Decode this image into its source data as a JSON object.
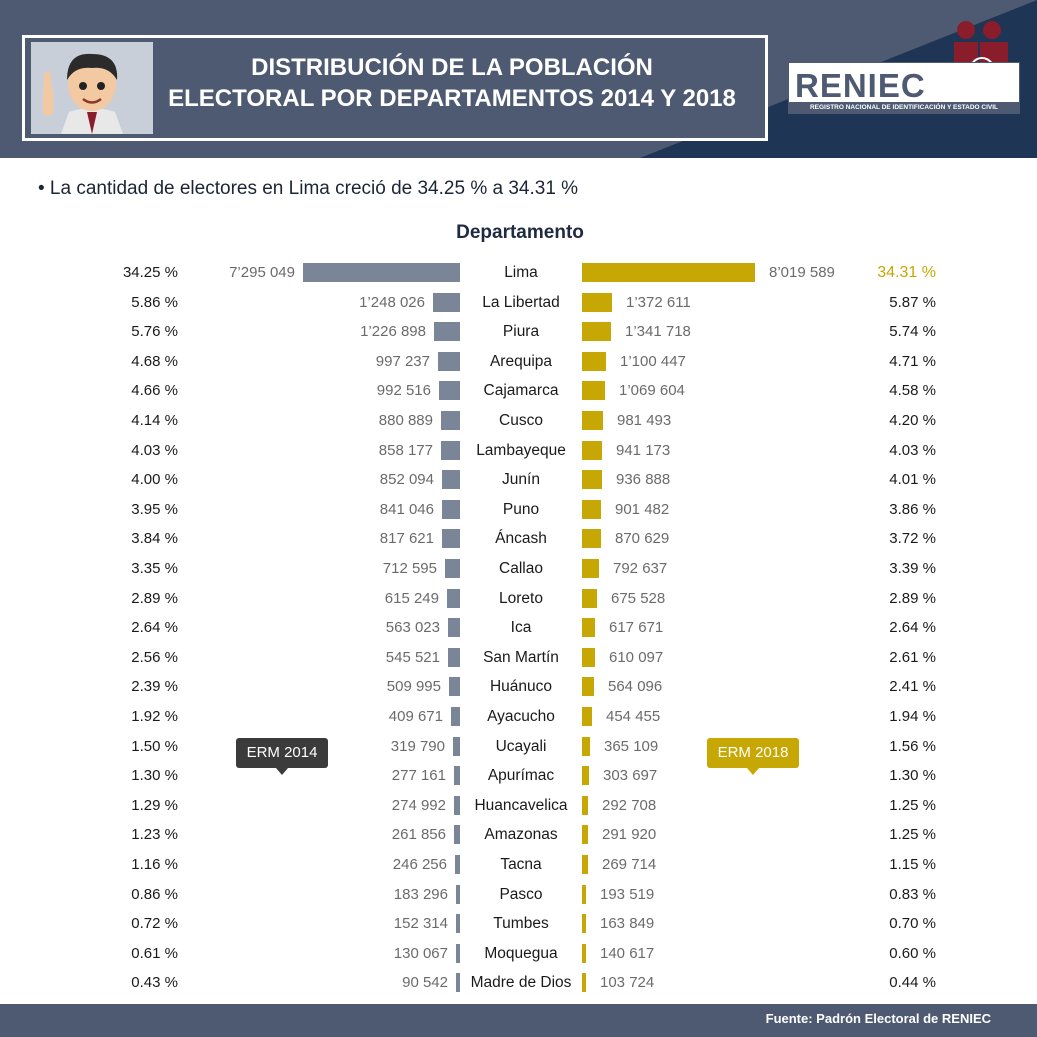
{
  "header": {
    "title_line1": "DISTRIBUCIÓN DE LA POBLACIÓN",
    "title_line2": "ELECTORAL POR DEPARTAMENTOS 2014 Y 2018"
  },
  "logo": {
    "name": "RENIEC",
    "subtitle": "REGISTRO NACIONAL DE IDENTIFICACIÓN Y ESTADO CIVIL"
  },
  "headline": "• La cantidad de electores en Lima creció de 34.25 % a 34.31 %",
  "footer": {
    "source": "Fuente: Padrón Electoral de RENIEC"
  },
  "colors": {
    "bar_2014": "#7a8598",
    "bar_2018": "#c6a703",
    "header": "#4e5a72"
  },
  "chart_data": {
    "type": "bar",
    "title": "Departamento",
    "series": [
      {
        "name": "ERM 2014",
        "values": [
          7295049,
          1248026,
          1226898,
          997237,
          992516,
          880889,
          858177,
          852094,
          841046,
          817621,
          712595,
          615249,
          563023,
          545521,
          509995,
          409671,
          319790,
          277161,
          274992,
          261856,
          246256,
          183296,
          152314,
          130067,
          90542
        ],
        "labels": [
          "7’295 049",
          "1’248 026",
          "1’226 898",
          "997 237",
          "992 516",
          "880 889",
          "858 177",
          "852 094",
          "841 046",
          "817 621",
          "712 595",
          "615 249",
          "563 023",
          "545 521",
          "509 995",
          "409 671",
          "319 790",
          "277 161",
          "274 992",
          "261 856",
          "246 256",
          "183 296",
          "152 314",
          "130 067",
          "90 542"
        ],
        "percent": [
          "34.25 %",
          "5.86 %",
          "5.76 %",
          "4.68 %",
          "4.66 %",
          "4.14 %",
          "4.03 %",
          "4.00 %",
          "3.95 %",
          "3.84 %",
          "3.35 %",
          "2.89 %",
          "2.64 %",
          "2.56 %",
          "2.39 %",
          "1.92 %",
          "1.50 %",
          "1.30 %",
          "1.29 %",
          "1.23 %",
          "1.16 %",
          "0.86 %",
          "0.72 %",
          "0.61 %",
          "0.43 %"
        ]
      },
      {
        "name": "ERM 2018",
        "values": [
          8019589,
          1372611,
          1341718,
          1100447,
          1069604,
          981493,
          941173,
          936888,
          901482,
          870629,
          792637,
          675528,
          617671,
          610097,
          564096,
          454455,
          365109,
          303697,
          292708,
          291920,
          269714,
          193519,
          163849,
          140617,
          103724
        ],
        "labels": [
          "8’019 589",
          "1’372 611",
          "1’341 718",
          "1’100 447",
          "1’069 604",
          "981 493",
          "941 173",
          "936 888",
          "901 482",
          "870 629",
          "792 637",
          "675 528",
          "617 671",
          "610 097",
          "564 096",
          "454 455",
          "365 109",
          "303 697",
          "292 708",
          "291 920",
          "269 714",
          "193 519",
          "163 849",
          "140 617",
          "103 724"
        ],
        "percent": [
          "34.31 %",
          "5.87 %",
          "5.74 %",
          "4.71 %",
          "4.58 %",
          "4.20 %",
          "4.03 %",
          "4.01 %",
          "3.86 %",
          "3.72 %",
          "3.39 %",
          "2.89 %",
          "2.64 %",
          "2.61 %",
          "2.41 %",
          "1.94 %",
          "1.56 %",
          "1.30 %",
          "1.25 %",
          "1.25 %",
          "1.15 %",
          "0.83 %",
          "0.70 %",
          "0.60 %",
          "0.44 %"
        ]
      }
    ],
    "categories": [
      "Lima",
      "La Libertad",
      "Piura",
      "Arequipa",
      "Cajamarca",
      "Cusco",
      "Lambayeque",
      "Junín",
      "Puno",
      "Áncash",
      "Callao",
      "Loreto",
      "Ica",
      "San Martín",
      "Huánuco",
      "Ayacucho",
      "Ucayali",
      "Apurímac",
      "Huancavelica",
      "Amazonas",
      "Tacna",
      "Pasco",
      "Tumbes",
      "Moquegua",
      "Madre de Dios"
    ],
    "legend_placement": "middle",
    "grid": false
  }
}
